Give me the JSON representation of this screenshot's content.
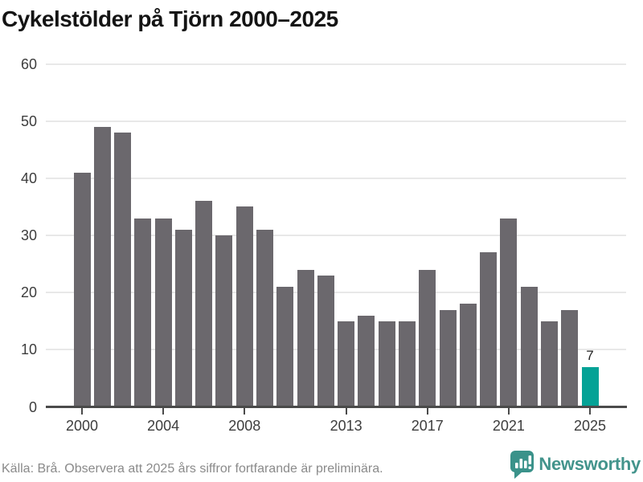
{
  "title": "Cykelstölder på Tjörn 2000–2025",
  "footer": {
    "source": "Källa: Brå. Observera att 2025 års siffror fortfarande är preliminära.",
    "brand": "Newsworthy"
  },
  "colors": {
    "bar": "#6b686d",
    "highlight": "#04a296",
    "grid": "#e8e8e8",
    "axis": "#4a4a4a",
    "title": "#141414",
    "tick_label": "#3d3d3d",
    "footer_text": "#8a8a8a",
    "brand": "#43948c"
  },
  "chart_data": {
    "type": "bar",
    "title": "Cykelstölder på Tjörn 2000–2025",
    "xlabel": "",
    "ylabel": "",
    "x": [
      2000,
      2001,
      2002,
      2003,
      2004,
      2005,
      2006,
      2007,
      2008,
      2009,
      2010,
      2011,
      2012,
      2013,
      2014,
      2015,
      2016,
      2017,
      2018,
      2019,
      2020,
      2021,
      2022,
      2023,
      2024,
      2025
    ],
    "values": [
      41,
      49,
      48,
      33,
      33,
      31,
      36,
      30,
      35,
      31,
      21,
      24,
      23,
      15,
      16,
      15,
      15,
      24,
      17,
      18,
      27,
      33,
      21,
      15,
      17,
      7
    ],
    "highlight_year": 2025,
    "highlight_value_label": "7",
    "ylim": [
      0,
      60
    ],
    "yticks": [
      0,
      10,
      20,
      30,
      40,
      50,
      60
    ],
    "xticks": [
      2000,
      2004,
      2008,
      2013,
      2017,
      2021,
      2025
    ],
    "grid": "horizontal",
    "legend": "none"
  }
}
